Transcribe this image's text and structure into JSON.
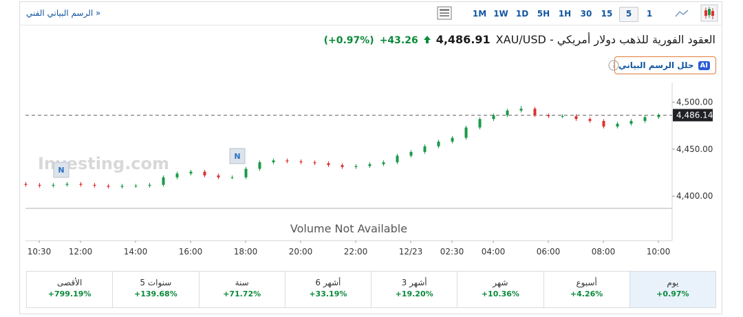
{
  "toolbar": {
    "link": "الرسم البياني الفني »",
    "timeframes": [
      "1M",
      "1W",
      "1D",
      "5H",
      "1H",
      "30",
      "15",
      "5",
      "1"
    ],
    "selected": "5"
  },
  "header": {
    "title": "XAU/USD - العقود الفورية للذهب دولار أمريكي",
    "price": "4,486.91",
    "change": "+43.26",
    "change_percent": "(+0.97%)",
    "ai_button": "حلل الرسم البياني",
    "ai_badge": "AI"
  },
  "watermark": "Investing.com",
  "news_markers": [
    "N",
    "N"
  ],
  "chart_data": {
    "type": "candlestick",
    "categories": [
      null,
      "10:30",
      null,
      null,
      "12:00",
      null,
      null,
      null,
      "14:00",
      null,
      null,
      null,
      "16:00",
      null,
      null,
      null,
      "18:00",
      null,
      null,
      null,
      "20:00",
      null,
      null,
      null,
      "22:00",
      null,
      null,
      null,
      "12/23",
      null,
      null,
      "02:30",
      null,
      null,
      "04:00",
      null,
      null,
      null,
      "06:00",
      null,
      null,
      null,
      "08:00",
      null,
      null,
      null,
      "10:00"
    ],
    "open": [
      4413,
      4412,
      4411,
      4412,
      4413,
      4412,
      4411,
      4410,
      4411,
      4411,
      4412,
      4420,
      4424,
      4426,
      4422,
      4420,
      4420,
      4429,
      4436,
      4438,
      4437,
      4436,
      4435,
      4433,
      4431,
      4432,
      4434,
      4436,
      4443,
      4447,
      4453,
      4458,
      4462,
      4473,
      4482,
      4486,
      4491,
      4493,
      4486,
      4485,
      4485,
      4482,
      4480,
      4474,
      4477,
      4480,
      4484
    ],
    "high": [
      4415,
      4414,
      4414,
      4415,
      4415,
      4414,
      4413,
      4413,
      4413,
      4414,
      4422,
      4426,
      4428,
      4428,
      4424,
      4422,
      4431,
      4438,
      4440,
      4440,
      4439,
      4438,
      4437,
      4435,
      4434,
      4436,
      4438,
      4445,
      4449,
      4455,
      4460,
      4464,
      4475,
      4484,
      4488,
      4493,
      4496,
      4495,
      4488,
      4487,
      4487,
      4484,
      4482,
      4479,
      4482,
      4486,
      4488
    ],
    "low": [
      4410,
      4409,
      4409,
      4410,
      4410,
      4409,
      4408,
      4408,
      4409,
      4409,
      4410,
      4418,
      4422,
      4420,
      4418,
      4418,
      4418,
      4427,
      4434,
      4435,
      4434,
      4433,
      4431,
      4429,
      4429,
      4430,
      4432,
      4434,
      4441,
      4445,
      4451,
      4456,
      4460,
      4471,
      4480,
      4484,
      4489,
      4484,
      4483,
      4483,
      4480,
      4478,
      4472,
      4472,
      4475,
      4478,
      4482
    ],
    "close": [
      4412,
      4411,
      4412,
      4413,
      4412,
      4411,
      4410,
      4411,
      4411,
      4412,
      4420,
      4424,
      4426,
      4422,
      4420,
      4420,
      4429,
      4436,
      4438,
      4437,
      4436,
      4435,
      4433,
      4431,
      4432,
      4434,
      4436,
      4443,
      4447,
      4453,
      4458,
      4462,
      4473,
      4482,
      4486,
      4491,
      4493,
      4486,
      4485,
      4485,
      4482,
      4480,
      4474,
      4477,
      4480,
      4484,
      4486.14
    ],
    "up_color": "#1a9a4a",
    "down_color": "#e03030",
    "ylim": [
      4387,
      4515
    ],
    "yticks": [
      {
        "value": 4400,
        "label": "4,400.00"
      },
      {
        "value": 4450,
        "label": "4,450.00"
      },
      {
        "value": 4500,
        "label": "4,500.00"
      }
    ],
    "current_price": {
      "value": 4486.14,
      "label": "4,486.14"
    },
    "annotation": "Volume Not Available"
  },
  "performance": [
    {
      "label": "يوم",
      "value": "+0.97%"
    },
    {
      "label": "أسبوع",
      "value": "+4.26%"
    },
    {
      "label": "شهر",
      "value": "+10.36%"
    },
    {
      "label": "3 أشهر",
      "value": "+19.20%"
    },
    {
      "label": "6 أشهر",
      "value": "+33.19%"
    },
    {
      "label": "سنة",
      "value": "+71.72%"
    },
    {
      "label": "5 سنوات",
      "value": "+139.68%"
    },
    {
      "label": "الأقصى",
      "value": "+799.19%"
    }
  ]
}
